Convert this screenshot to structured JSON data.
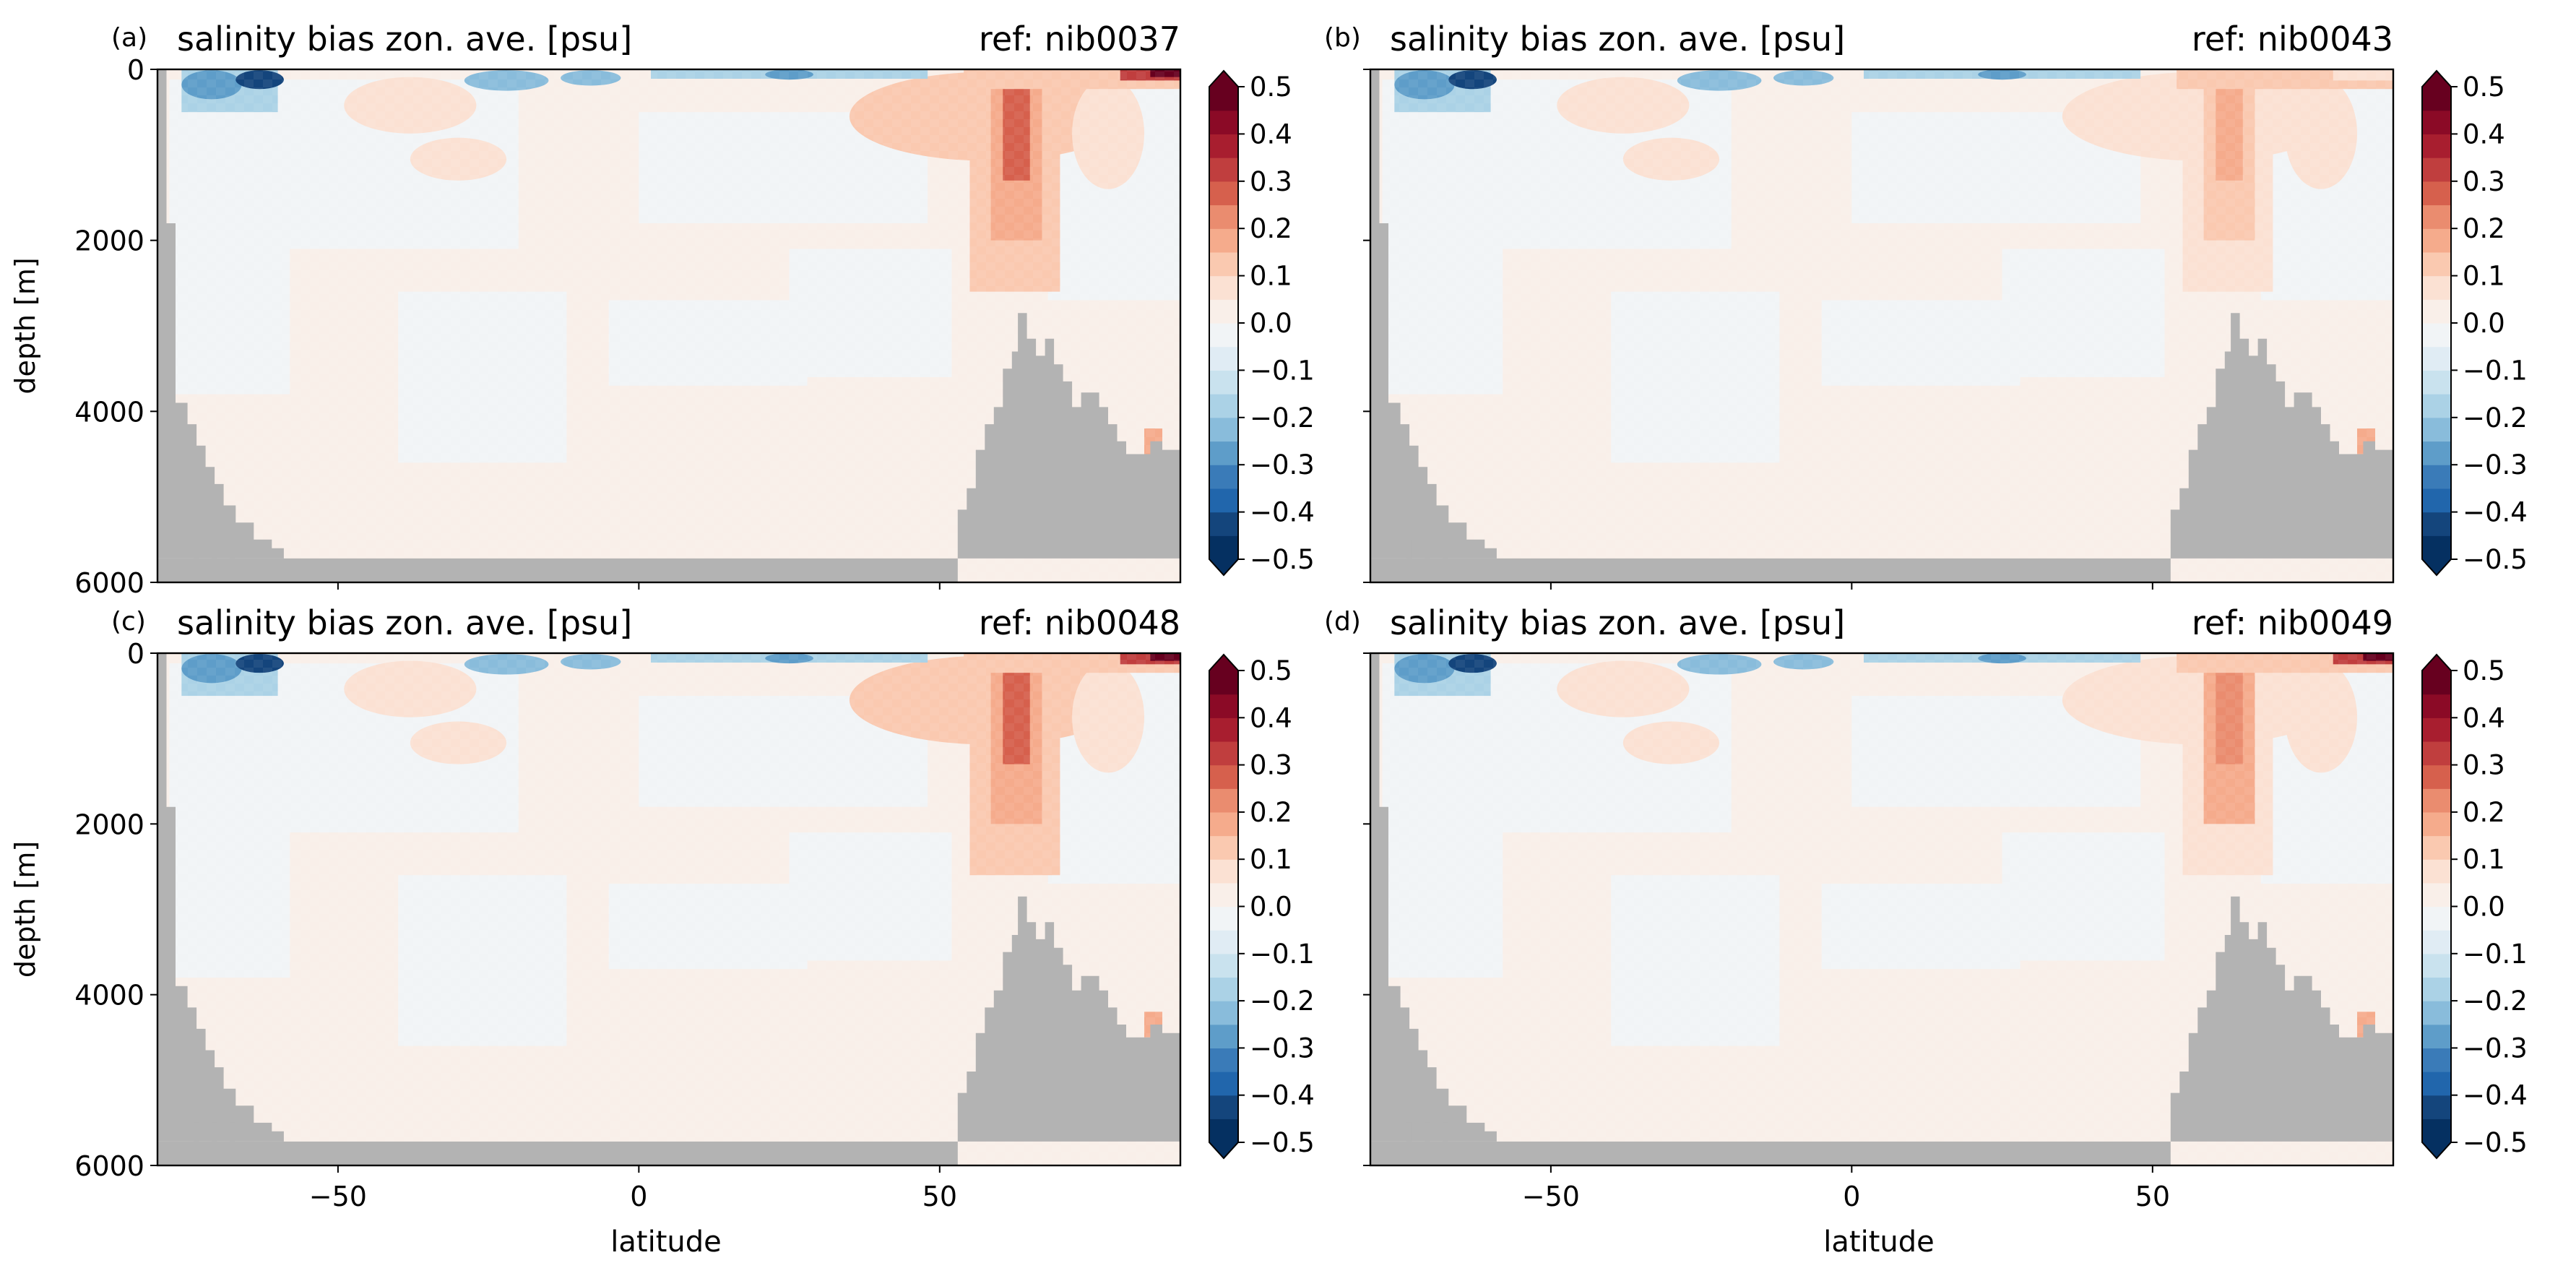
{
  "figure": {
    "xlabel": "latitude",
    "ylabel": "depth [m]"
  },
  "chart_data": [
    {
      "type": "heatmap",
      "panel": "(a)",
      "title": "salinity bias zon. ave. [psu]",
      "subtitle": "ref: nib0037",
      "xlabel": "",
      "ylabel": "depth [m]",
      "xlim": [
        -80,
        90
      ],
      "ylim": [
        6000,
        0
      ],
      "x_ticks": [
        -50,
        0,
        50
      ],
      "y_ticks": [
        0,
        2000,
        4000,
        6000
      ],
      "colorbar": {
        "ticks": [
          "0.5",
          "0.4",
          "0.3",
          "0.2",
          "0.1",
          "0.0",
          "−0.1",
          "−0.2",
          "−0.3",
          "−0.4",
          "−0.5"
        ],
        "range": [
          -0.5,
          0.5
        ],
        "levels": 20,
        "colormap": "RdBu_r",
        "extend": "both"
      },
      "mask_color": "#b3b3b3",
      "features": {
        "atlantic_plume_max": 0.25,
        "arctic_surface_max": 0.5,
        "southern_ocean_surface_min": -0.4
      }
    },
    {
      "type": "heatmap",
      "panel": "(b)",
      "title": "salinity bias zon. ave. [psu]",
      "subtitle": "ref: nib0043",
      "xlabel": "",
      "ylabel": "",
      "xlim": [
        -80,
        90
      ],
      "ylim": [
        6000,
        0
      ],
      "x_ticks": [
        -50,
        0,
        50
      ],
      "y_ticks": [
        0,
        2000,
        4000,
        6000
      ],
      "colorbar": {
        "ticks": [
          "0.5",
          "0.4",
          "0.3",
          "0.2",
          "0.1",
          "0.0",
          "−0.1",
          "−0.2",
          "−0.3",
          "−0.4",
          "−0.5"
        ],
        "range": [
          -0.5,
          0.5
        ],
        "levels": 20,
        "colormap": "RdBu_r",
        "extend": "both"
      },
      "mask_color": "#b3b3b3",
      "features": {
        "atlantic_plume_max": 0.15,
        "arctic_surface_max": 0.1,
        "southern_ocean_surface_min": -0.4
      }
    },
    {
      "type": "heatmap",
      "panel": "(c)",
      "title": "salinity bias zon. ave. [psu]",
      "subtitle": "ref: nib0048",
      "xlabel": "latitude",
      "ylabel": "depth [m]",
      "xlim": [
        -80,
        90
      ],
      "ylim": [
        6000,
        0
      ],
      "x_ticks": [
        -50,
        0,
        50
      ],
      "y_ticks": [
        0,
        2000,
        4000,
        6000
      ],
      "colorbar": {
        "ticks": [
          "0.5",
          "0.4",
          "0.3",
          "0.2",
          "0.1",
          "0.0",
          "−0.1",
          "−0.2",
          "−0.3",
          "−0.4",
          "−0.5"
        ],
        "range": [
          -0.5,
          0.5
        ],
        "levels": 20,
        "colormap": "RdBu_r",
        "extend": "both"
      },
      "mask_color": "#b3b3b3",
      "features": {
        "atlantic_plume_max": 0.25,
        "arctic_surface_max": 0.5,
        "southern_ocean_surface_min": -0.4
      }
    },
    {
      "type": "heatmap",
      "panel": "(d)",
      "title": "salinity bias zon. ave. [psu]",
      "subtitle": "ref: nib0049",
      "xlabel": "latitude",
      "ylabel": "",
      "xlim": [
        -80,
        90
      ],
      "ylim": [
        6000,
        0
      ],
      "x_ticks": [
        -50,
        0,
        50
      ],
      "y_ticks": [
        0,
        2000,
        4000,
        6000
      ],
      "colorbar": {
        "ticks": [
          "0.5",
          "0.4",
          "0.3",
          "0.2",
          "0.1",
          "0.0",
          "−0.1",
          "−0.2",
          "−0.3",
          "−0.4",
          "−0.5"
        ],
        "range": [
          -0.5,
          0.5
        ],
        "levels": 20,
        "colormap": "RdBu_r",
        "extend": "both"
      },
      "mask_color": "#b3b3b3",
      "features": {
        "atlantic_plume_max": 0.22,
        "arctic_surface_max": 0.5,
        "southern_ocean_surface_min": -0.4
      }
    }
  ]
}
